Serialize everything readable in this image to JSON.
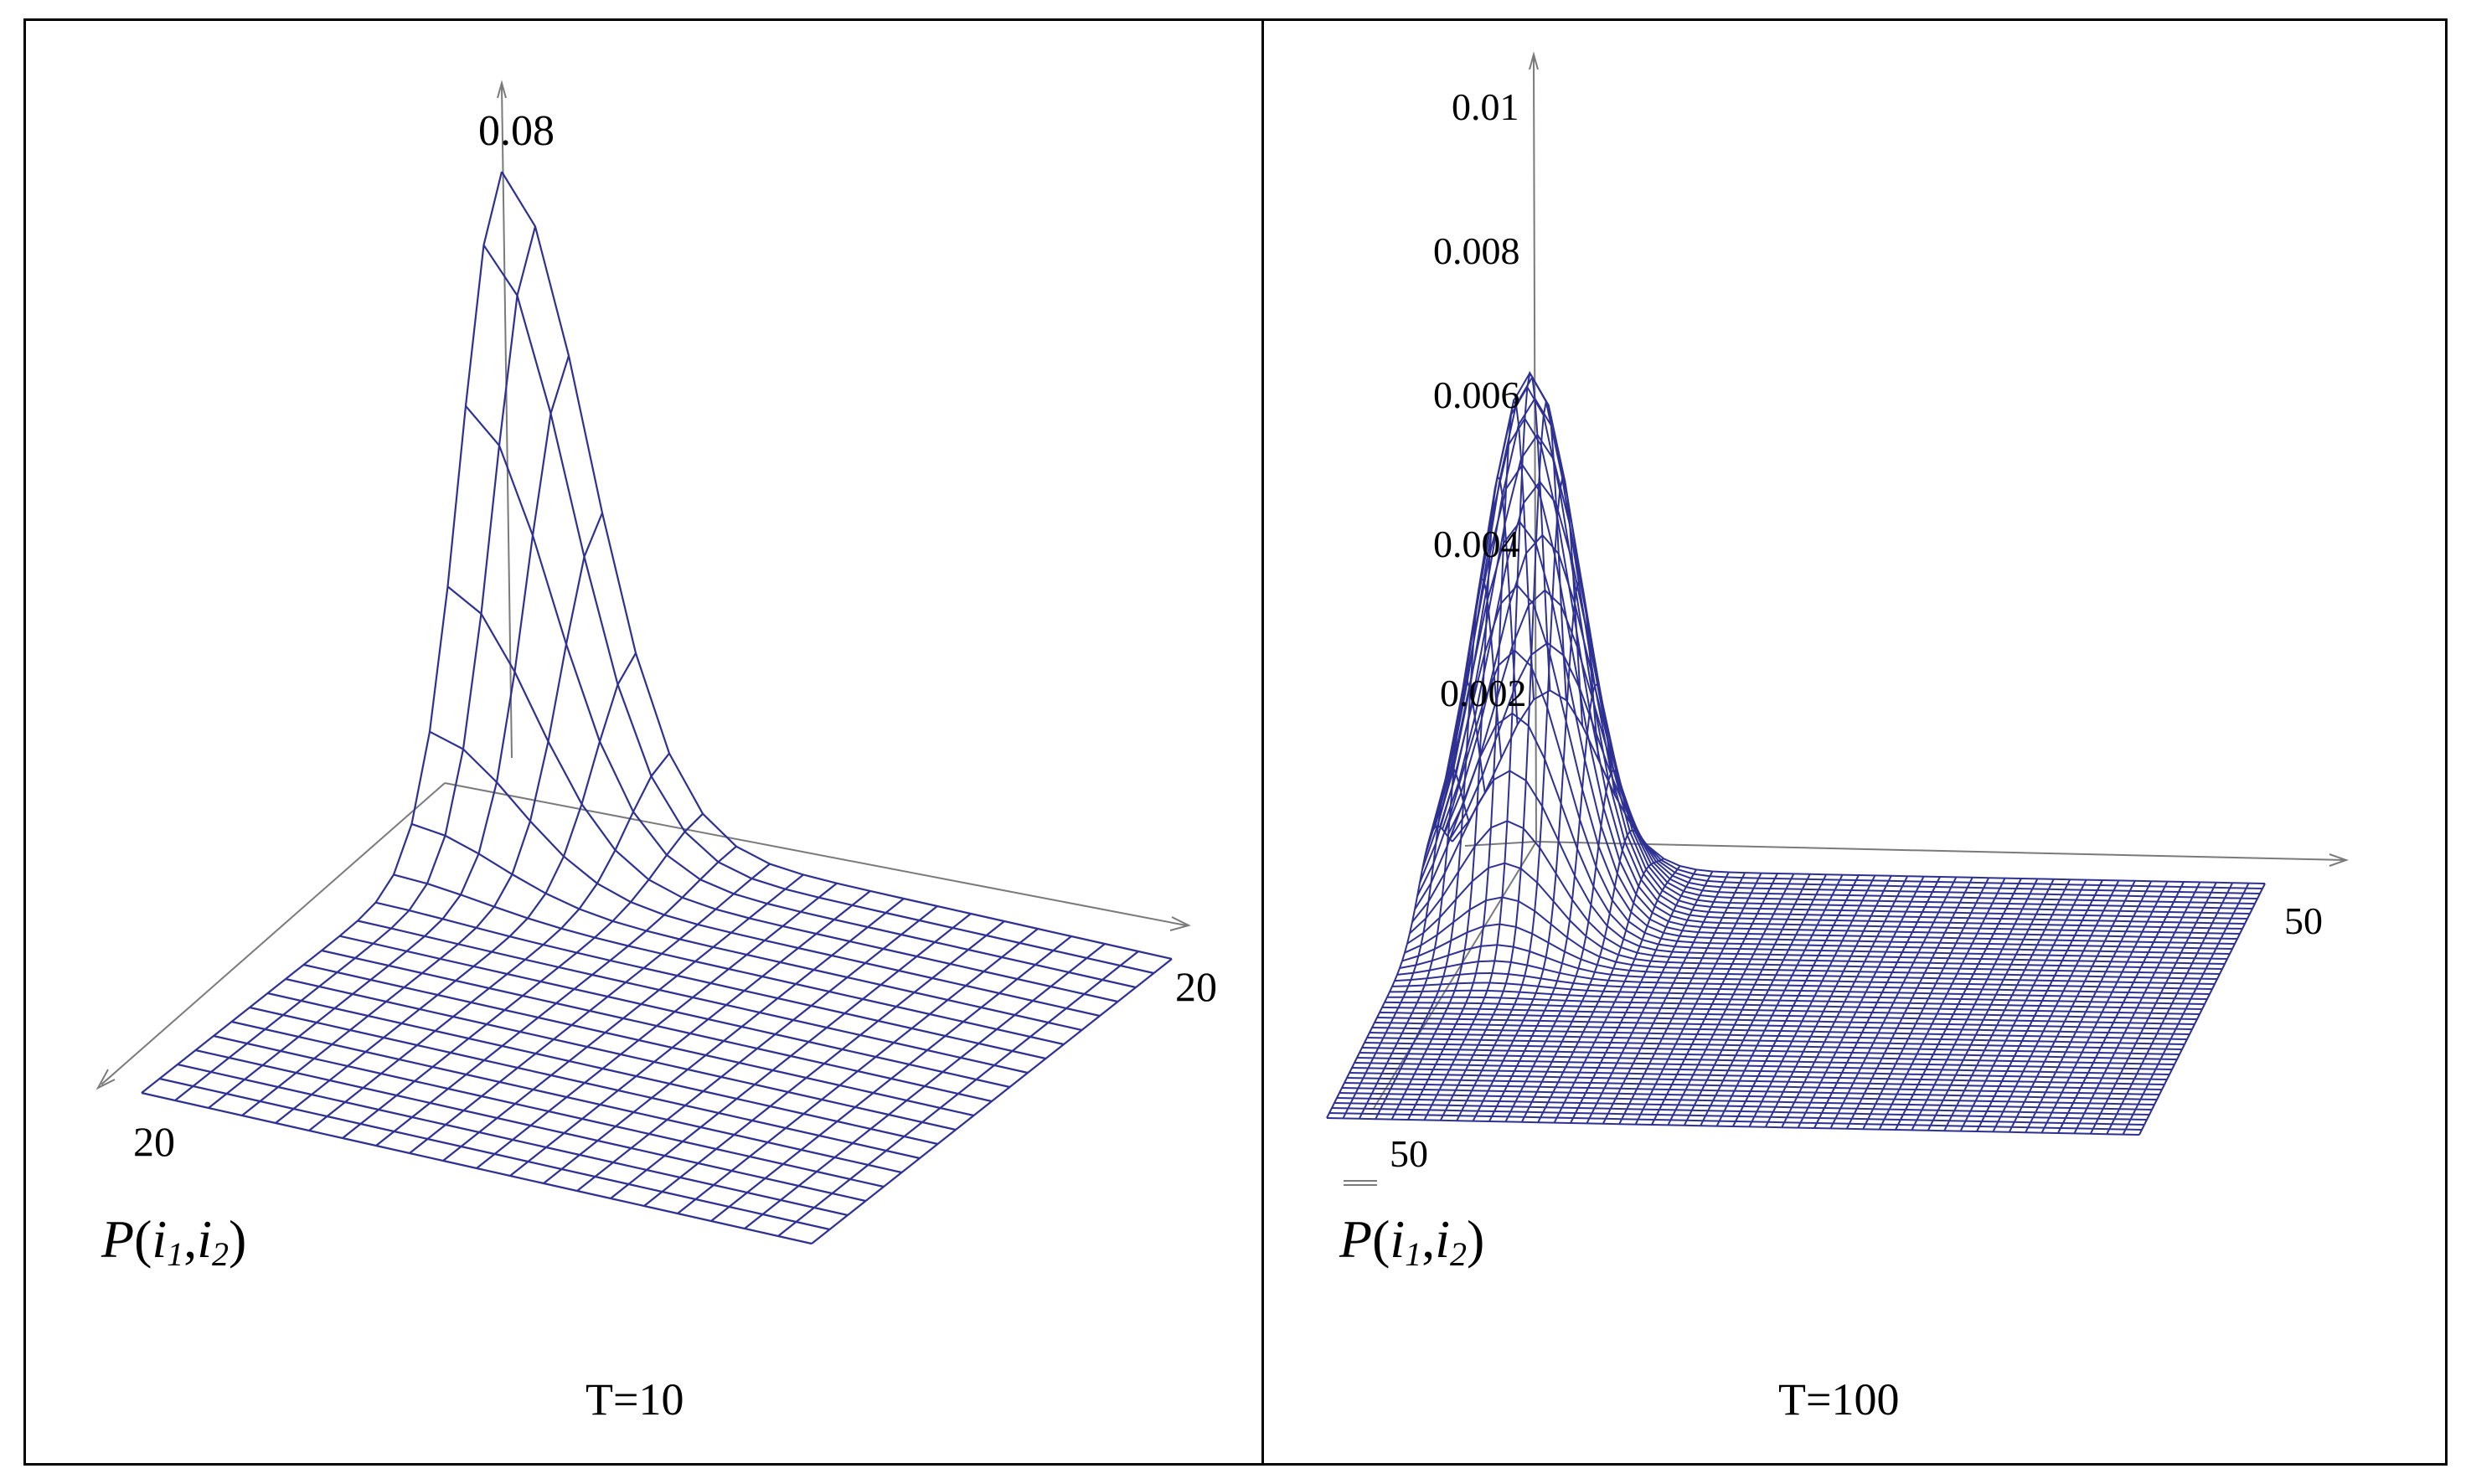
{
  "chart_data": [
    {
      "type": "surface",
      "caption": "T=10",
      "function_label": {
        "name": "P",
        "open": "(",
        "var1": "i",
        "sub1": "1",
        "comma": ",",
        "var2": "i",
        "sub2": "2",
        "close": ")"
      },
      "grid_size": 20,
      "i1_max_label": "20",
      "i2_max_label": "20",
      "z_tick_labels": [
        "0.08"
      ],
      "z_max": 0.08,
      "peak": {
        "i1": 0,
        "i2": 0,
        "value": 0.08
      },
      "line_color": "#2e3192"
    },
    {
      "type": "surface",
      "caption": "T=100",
      "function_label": {
        "name": "P",
        "open": "(",
        "var1": "i",
        "sub1": "1",
        "comma": ",",
        "var2": "i",
        "sub2": "2",
        "close": ")"
      },
      "grid_size": 50,
      "i1_max_label": "50",
      "i2_max_label": "50",
      "z_tick_labels": [
        "0.002",
        "0.004",
        "0.006",
        "0.008",
        "0.01"
      ],
      "z_ticks": [
        0.002,
        0.004,
        0.006,
        0.008,
        0.01
      ],
      "z_max": 0.0072,
      "peak": {
        "i1": 0,
        "i2": 0,
        "value": 0.0072
      },
      "line_color": "#2e3192"
    }
  ]
}
